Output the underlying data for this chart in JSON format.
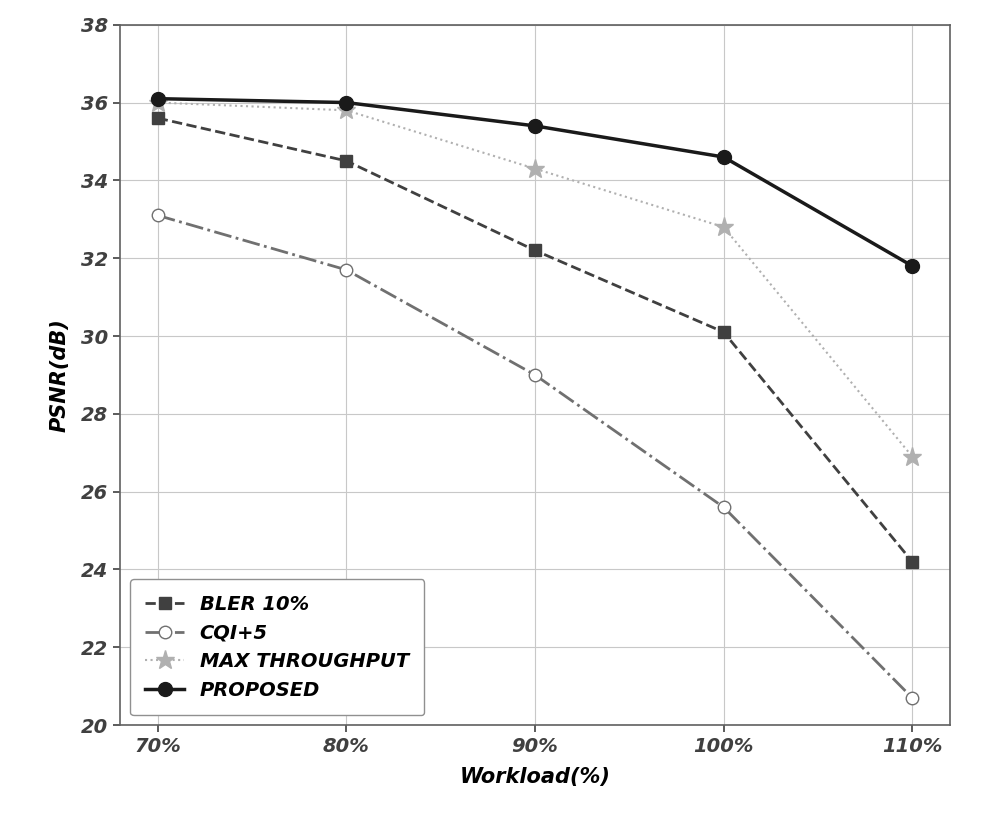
{
  "x_labels": [
    "70%",
    "80%",
    "90%",
    "100%",
    "110%"
  ],
  "x_values": [
    70,
    80,
    90,
    100,
    110
  ],
  "series": {
    "BLER 10%": {
      "y": [
        35.6,
        34.5,
        32.2,
        30.1,
        24.2
      ],
      "color": "#404040",
      "linestyle": "--",
      "marker": "s",
      "markersize": 9,
      "linewidth": 2.0,
      "markerfacecolor": "#404040"
    },
    "CQI+5": {
      "y": [
        33.1,
        31.7,
        29.0,
        25.6,
        20.7
      ],
      "color": "#707070",
      "linestyle": "-.",
      "marker": "o",
      "markersize": 9,
      "linewidth": 2.0,
      "markerfacecolor": "white"
    },
    "MAX THROUGHPUT": {
      "y": [
        36.0,
        35.8,
        34.3,
        32.8,
        26.9
      ],
      "color": "#b0b0b0",
      "linestyle": ":",
      "marker": "*",
      "markersize": 14,
      "linewidth": 1.5,
      "markerfacecolor": "#b0b0b0"
    },
    "PROPOSED": {
      "y": [
        36.1,
        36.0,
        35.4,
        34.6,
        31.8
      ],
      "color": "#1a1a1a",
      "linestyle": "-",
      "marker": "o",
      "markersize": 10,
      "linewidth": 2.5,
      "markerfacecolor": "#1a1a1a"
    }
  },
  "xlabel": "Workload(%)",
  "ylabel": "PSNR(dB)",
  "ylim": [
    20,
    38
  ],
  "yticks": [
    20,
    22,
    24,
    26,
    28,
    30,
    32,
    34,
    36,
    38
  ],
  "title": "",
  "legend_loc": "lower left",
  "legend_fontsize": 14,
  "axis_label_fontsize": 15,
  "tick_fontsize": 14,
  "grid_color": "#c8c8c8",
  "grid_linestyle": "-",
  "grid_linewidth": 0.8,
  "background_color": "#ffffff",
  "figsize": [
    10.0,
    8.24
  ]
}
